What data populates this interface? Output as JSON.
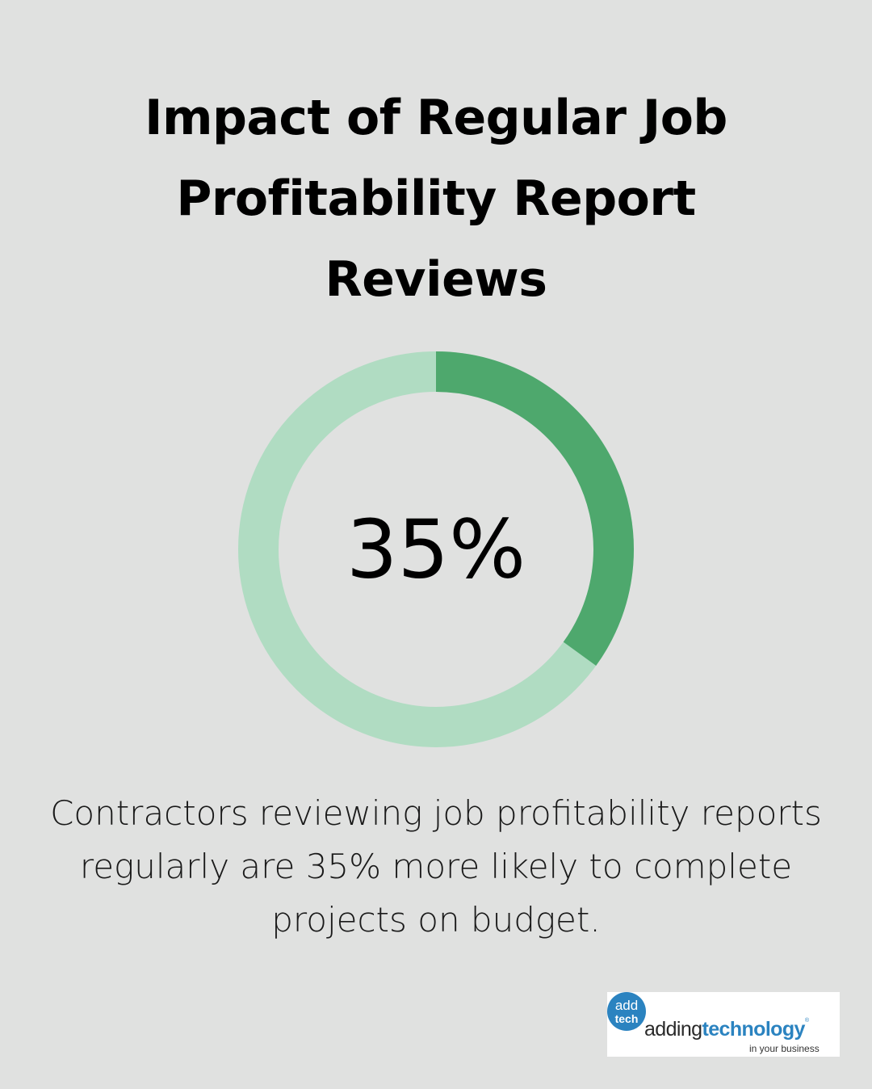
{
  "title": "Impact of Regular Job Profitability Report Reviews",
  "chart_data": {
    "type": "pie",
    "subtype": "donut",
    "value": 35,
    "max": 100,
    "label": "35%",
    "colors": {
      "filled": "#4ea86d",
      "remaining": "#b0dcc2"
    }
  },
  "description": "Contractors reviewing job profitability reports regularly are 35% more likely to complete projects on budget.",
  "logo": {
    "badge_top": "add",
    "badge_bottom": "tech",
    "word_light": "adding",
    "word_bold": "technology",
    "mark": "®",
    "tagline": "in your business",
    "colors": {
      "blue": "#2b83c0"
    }
  }
}
